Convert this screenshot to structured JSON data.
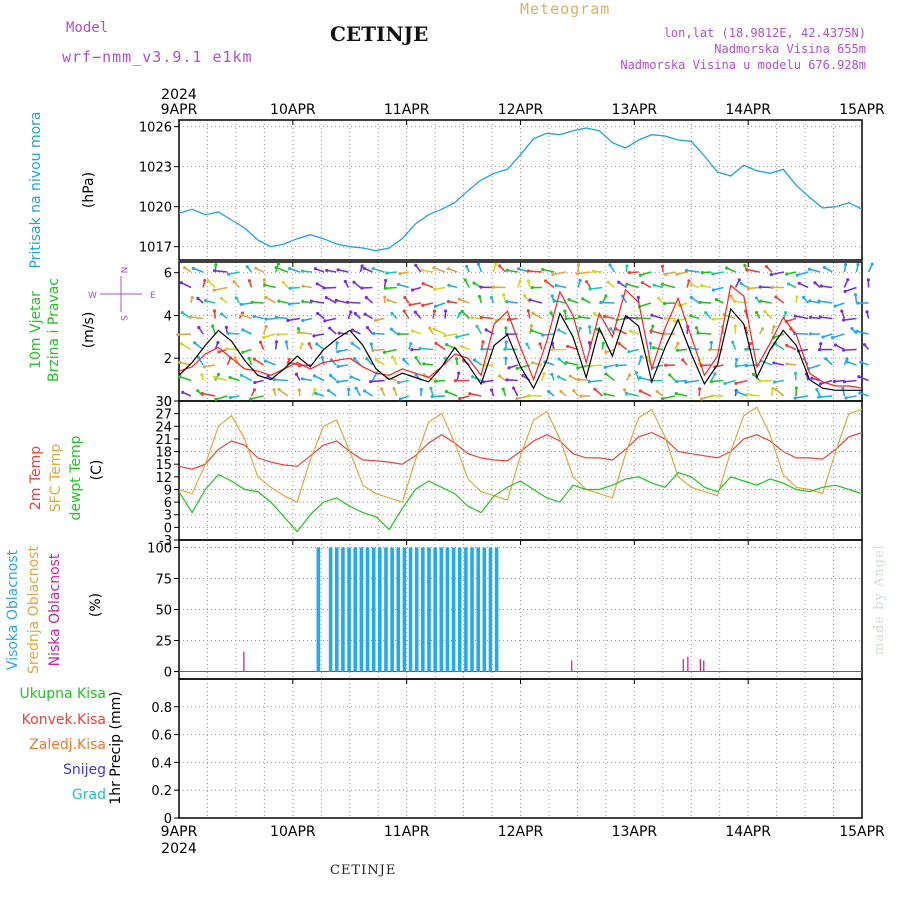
{
  "header": {
    "model_label": "Model",
    "model_name": "wrf−nmm_v3.9.1 e1km",
    "station": "CETINJE",
    "meteogram_label": "Meteogram",
    "lonlat": "lon,lat (18.9812E, 42.4375N)",
    "elevation": "Nadmorska Visina 655m",
    "model_elevation": "Nadmorska Visina u modelu 676.928m"
  },
  "footer": {
    "station": "CETINJE",
    "credit": "made by Angel"
  },
  "colors": {
    "pressure": "#1fa3e0",
    "temp2m": "#e8443a",
    "sfc": "#e0a840",
    "dewpt": "#22c422",
    "cloud_high": "#22aaee",
    "cloud_mid": "#e0a840",
    "cloud_low": "#d020a0",
    "wind_speed": "#000000",
    "wind_gust": "#ff2020",
    "purple": "#b04fd0",
    "precip_total": "#22c422",
    "precip_conv": "#e8443a",
    "precip_frozen": "#f07830",
    "precip_snow": "#3a3ae0",
    "precip_grad": "#22c4b0"
  },
  "chart_data": [
    {
      "type": "line",
      "panel": "pressure",
      "title": "Pritisak na nivou mora",
      "ylabel": "(hPa)",
      "ylim": [
        1016,
        1026.5
      ],
      "yticks": [
        1017,
        1020,
        1023,
        1026
      ],
      "x_start_label": "2024",
      "xticks": [
        "9APR",
        "10APR",
        "11APR",
        "12APR",
        "13APR",
        "14APR",
        "15APR"
      ],
      "series": [
        {
          "values_hourly_every3h": [
            1019.5,
            1019.8,
            1019.4,
            1019.6,
            1019.0,
            1018.4,
            1017.5,
            1017.0,
            1017.2,
            1017.6,
            1017.9,
            1017.6,
            1017.2,
            1017.0,
            1016.9,
            1016.7,
            1016.9,
            1017.6,
            1018.7,
            1019.4,
            1019.8,
            1020.3,
            1021.2,
            1022.0,
            1022.5,
            1022.8,
            1023.9,
            1025.1,
            1025.5,
            1025.4,
            1025.7,
            1025.9,
            1025.7,
            1024.8,
            1024.4,
            1025.0,
            1025.4,
            1025.3,
            1025.0,
            1024.9,
            1023.8,
            1022.6,
            1022.3,
            1023.1,
            1022.7,
            1022.5,
            1022.8,
            1021.6,
            1020.7,
            1019.9,
            1020.0,
            1020.3,
            1019.8
          ]
        }
      ]
    },
    {
      "type": "line",
      "panel": "wind",
      "title": "10m Vjetar Brzina i Pravac",
      "ylabel": "(m/s)",
      "ylim": [
        0,
        6.5
      ],
      "yticks": [
        0,
        2,
        4,
        6
      ],
      "compass": {
        "north": "N",
        "south": "S",
        "east": "E",
        "west": "W"
      },
      "series": [
        {
          "values_every3h": [
            1.2,
            1.8,
            2.6,
            3.3,
            2.8,
            1.9,
            1.2,
            1.0,
            1.5,
            2.1,
            1.6,
            2.4,
            2.9,
            3.3,
            2.6,
            1.5,
            1.0,
            1.3,
            1.1,
            0.9,
            1.6,
            2.5,
            1.7,
            0.8,
            2.6,
            3.1,
            1.6,
            0.6,
            1.9,
            4.1,
            3.0,
            1.1,
            3.4,
            2.1,
            4.0,
            3.5,
            0.9,
            2.5,
            3.8,
            2.2,
            0.8,
            1.7,
            4.3,
            3.6,
            1.1,
            2.4,
            3.3,
            2.6,
            1.0,
            0.6,
            0.5,
            0.5,
            0.5
          ]
        },
        {
          "values_every3h": [
            1.4,
            1.6,
            2.2,
            2.5,
            2.0,
            1.5,
            1.4,
            1.2,
            1.5,
            1.8,
            1.5,
            1.8,
            1.9,
            2.0,
            1.6,
            1.3,
            1.2,
            1.5,
            1.3,
            1.1,
            1.6,
            2.2,
            2.0,
            1.2,
            3.6,
            4.2,
            2.5,
            1.0,
            2.8,
            5.1,
            4.0,
            1.8,
            4.1,
            3.0,
            5.2,
            4.6,
            1.5,
            3.4,
            4.8,
            3.0,
            1.2,
            2.1,
            5.4,
            4.9,
            1.6,
            2.7,
            3.9,
            3.1,
            1.3,
            0.9,
            0.7,
            0.7,
            0.6
          ]
        }
      ]
    },
    {
      "type": "line",
      "panel": "temperature",
      "title": "2m Temp / SFC Temp / dewpt Temp",
      "ylabel": "(C)",
      "ylim": [
        -3,
        30
      ],
      "yticks": [
        -3,
        0,
        3,
        6,
        9,
        12,
        15,
        18,
        21,
        24,
        27,
        30
      ],
      "series": [
        {
          "name": "2m Temp",
          "values_every3h": [
            14.5,
            13.8,
            15.0,
            18.5,
            20.5,
            19.5,
            16.5,
            15.5,
            14.8,
            14.5,
            17.0,
            19.5,
            20.5,
            18.0,
            16.0,
            15.8,
            15.5,
            15.0,
            17.0,
            20.0,
            22.0,
            20.0,
            17.5,
            16.5,
            16.0,
            15.8,
            18.0,
            20.5,
            22.0,
            20.5,
            17.5,
            16.5,
            16.5,
            16.0,
            18.5,
            21.5,
            22.5,
            21.0,
            18.0,
            17.5,
            17.0,
            16.5,
            18.0,
            21.0,
            22.0,
            20.5,
            18.0,
            16.5,
            16.5,
            16.2,
            18.5,
            21.5,
            22.5
          ]
        },
        {
          "name": "SFC Temp",
          "values_every3h": [
            9.0,
            8.0,
            15.0,
            24.0,
            26.5,
            21.0,
            12.0,
            9.5,
            7.5,
            6.0,
            16.0,
            24.0,
            25.5,
            18.0,
            10.0,
            8.0,
            7.0,
            6.0,
            16.0,
            25.0,
            27.0,
            20.0,
            11.5,
            8.5,
            7.5,
            6.5,
            17.0,
            25.5,
            27.5,
            21.0,
            12.0,
            9.0,
            8.0,
            7.0,
            17.5,
            26.0,
            28.0,
            21.5,
            12.0,
            9.5,
            8.5,
            7.5,
            18.0,
            26.5,
            28.5,
            22.0,
            12.5,
            9.5,
            9.0,
            8.0,
            18.0,
            27.0,
            28.0
          ]
        },
        {
          "name": "dewpt Temp",
          "values_every3h": [
            8.5,
            3.5,
            9.0,
            12.5,
            11.0,
            9.0,
            8.5,
            6.0,
            2.5,
            -1.0,
            3.0,
            6.0,
            7.0,
            5.0,
            3.5,
            2.5,
            -0.5,
            4.5,
            9.0,
            11.0,
            9.5,
            8.0,
            5.0,
            3.5,
            7.5,
            9.5,
            11.0,
            9.0,
            7.0,
            6.0,
            10.0,
            9.0,
            9.0,
            10.0,
            11.5,
            12.0,
            10.5,
            9.5,
            13.0,
            12.0,
            9.5,
            8.5,
            12.0,
            11.0,
            10.0,
            11.5,
            10.5,
            9.0,
            8.5,
            9.5,
            10.0,
            9.0,
            8.0
          ]
        }
      ]
    },
    {
      "type": "bar",
      "panel": "clouds",
      "title": "Visoka Oblacnost / Srednja Oblacnost / Niska Oblacnost",
      "ylabel": "(%)",
      "ylim": [
        0,
        100
      ],
      "yticks": [
        0,
        25,
        50,
        75,
        100
      ],
      "series": [
        {
          "name": "Visoka Oblacnost",
          "note": "100% bars from about 10APR 05h to 11APR 19h"
        },
        {
          "name": "Niska Oblacnost",
          "spikes": [
            {
              "day": 0.57,
              "value": 16
            },
            {
              "day": 3.45,
              "value": 9
            },
            {
              "day": 4.43,
              "value": 10
            },
            {
              "day": 4.47,
              "value": 12
            },
            {
              "day": 4.58,
              "value": 10
            },
            {
              "day": 4.61,
              "value": 9
            }
          ]
        }
      ]
    },
    {
      "type": "bar",
      "panel": "precip",
      "title": "1hr Precip",
      "ylabel": "(mm)",
      "ylim": [
        0,
        1.0
      ],
      "yticks": [
        0,
        0.2,
        0.4,
        0.6,
        0.8
      ],
      "legend": [
        "Ukupna Kisa",
        "Konvek.Kisa",
        "Zaledj.Kisa",
        "Snijeg",
        "Grad"
      ],
      "values": []
    }
  ]
}
